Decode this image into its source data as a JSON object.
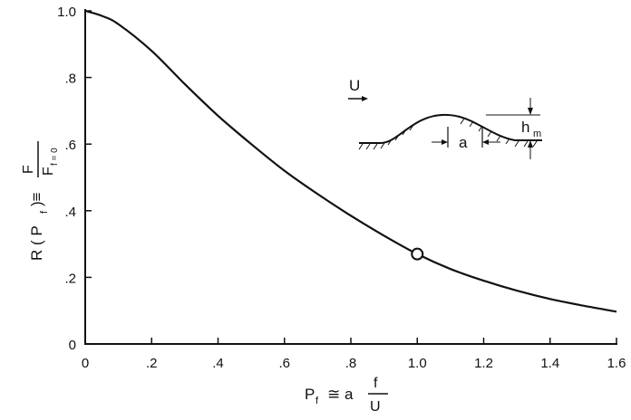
{
  "chart_data": {
    "type": "line",
    "xlabel": {
      "main": "P",
      "main_sub": "f",
      "relation": "≅ a",
      "frac_num": "f",
      "frac_den": "U"
    },
    "ylabel": {
      "main": "R ( P",
      "main_sub": "f",
      "close": ")≡",
      "frac_num": "F",
      "frac_den": "F",
      "frac_den_sub": "f = 0"
    },
    "xlim": [
      0,
      1.6
    ],
    "ylim": [
      0,
      1.0
    ],
    "x_ticks": [
      0,
      0.2,
      0.4,
      0.6,
      0.8,
      1.0,
      1.2,
      1.4,
      1.6
    ],
    "x_tick_labels": [
      "0",
      ".2",
      ".4",
      ".6",
      ".8",
      "1.0",
      "1.2",
      "1.4",
      "1.6"
    ],
    "y_ticks": [
      0,
      0.2,
      0.4,
      0.6,
      0.8,
      1.0
    ],
    "y_tick_labels": [
      "0",
      ".2",
      ".4",
      ".6",
      ".8",
      "1.0"
    ],
    "grid": false,
    "series": [
      {
        "x": [
          0,
          0.05,
          0.1,
          0.2,
          0.3,
          0.4,
          0.5,
          0.6,
          0.7,
          0.8,
          0.9,
          1.0,
          1.1,
          1.2,
          1.3,
          1.4,
          1.5,
          1.6
        ],
        "y": [
          1.0,
          0.985,
          0.96,
          0.88,
          0.78,
          0.685,
          0.6,
          0.52,
          0.45,
          0.385,
          0.325,
          0.27,
          0.225,
          0.19,
          0.16,
          0.135,
          0.115,
          0.097
        ]
      }
    ],
    "marker_point": {
      "x": 1.0,
      "y": 0.27
    },
    "inset": {
      "flow_label": "U",
      "height_label": "h",
      "height_sub": "m",
      "width_label": "a"
    }
  }
}
